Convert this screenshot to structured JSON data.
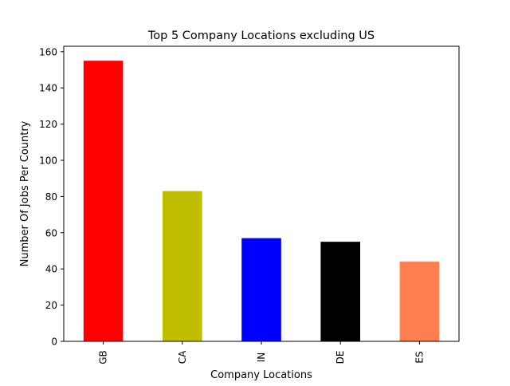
{
  "chart_data": {
    "type": "bar",
    "title": "Top 5 Company Locations excluding US",
    "xlabel": "Company Locations",
    "ylabel": "Number Of Jobs Per Country",
    "categories": [
      "GB",
      "CA",
      "IN",
      "DE",
      "ES"
    ],
    "values": [
      155,
      83,
      57,
      55,
      44
    ],
    "colors": [
      "#ff0000",
      "#bfbf00",
      "#0000ff",
      "#000000",
      "#ff7f50"
    ],
    "ylim": [
      0,
      163
    ],
    "yticks": [
      0,
      20,
      40,
      60,
      80,
      100,
      120,
      140,
      160
    ],
    "grid": false,
    "legend": "none"
  }
}
